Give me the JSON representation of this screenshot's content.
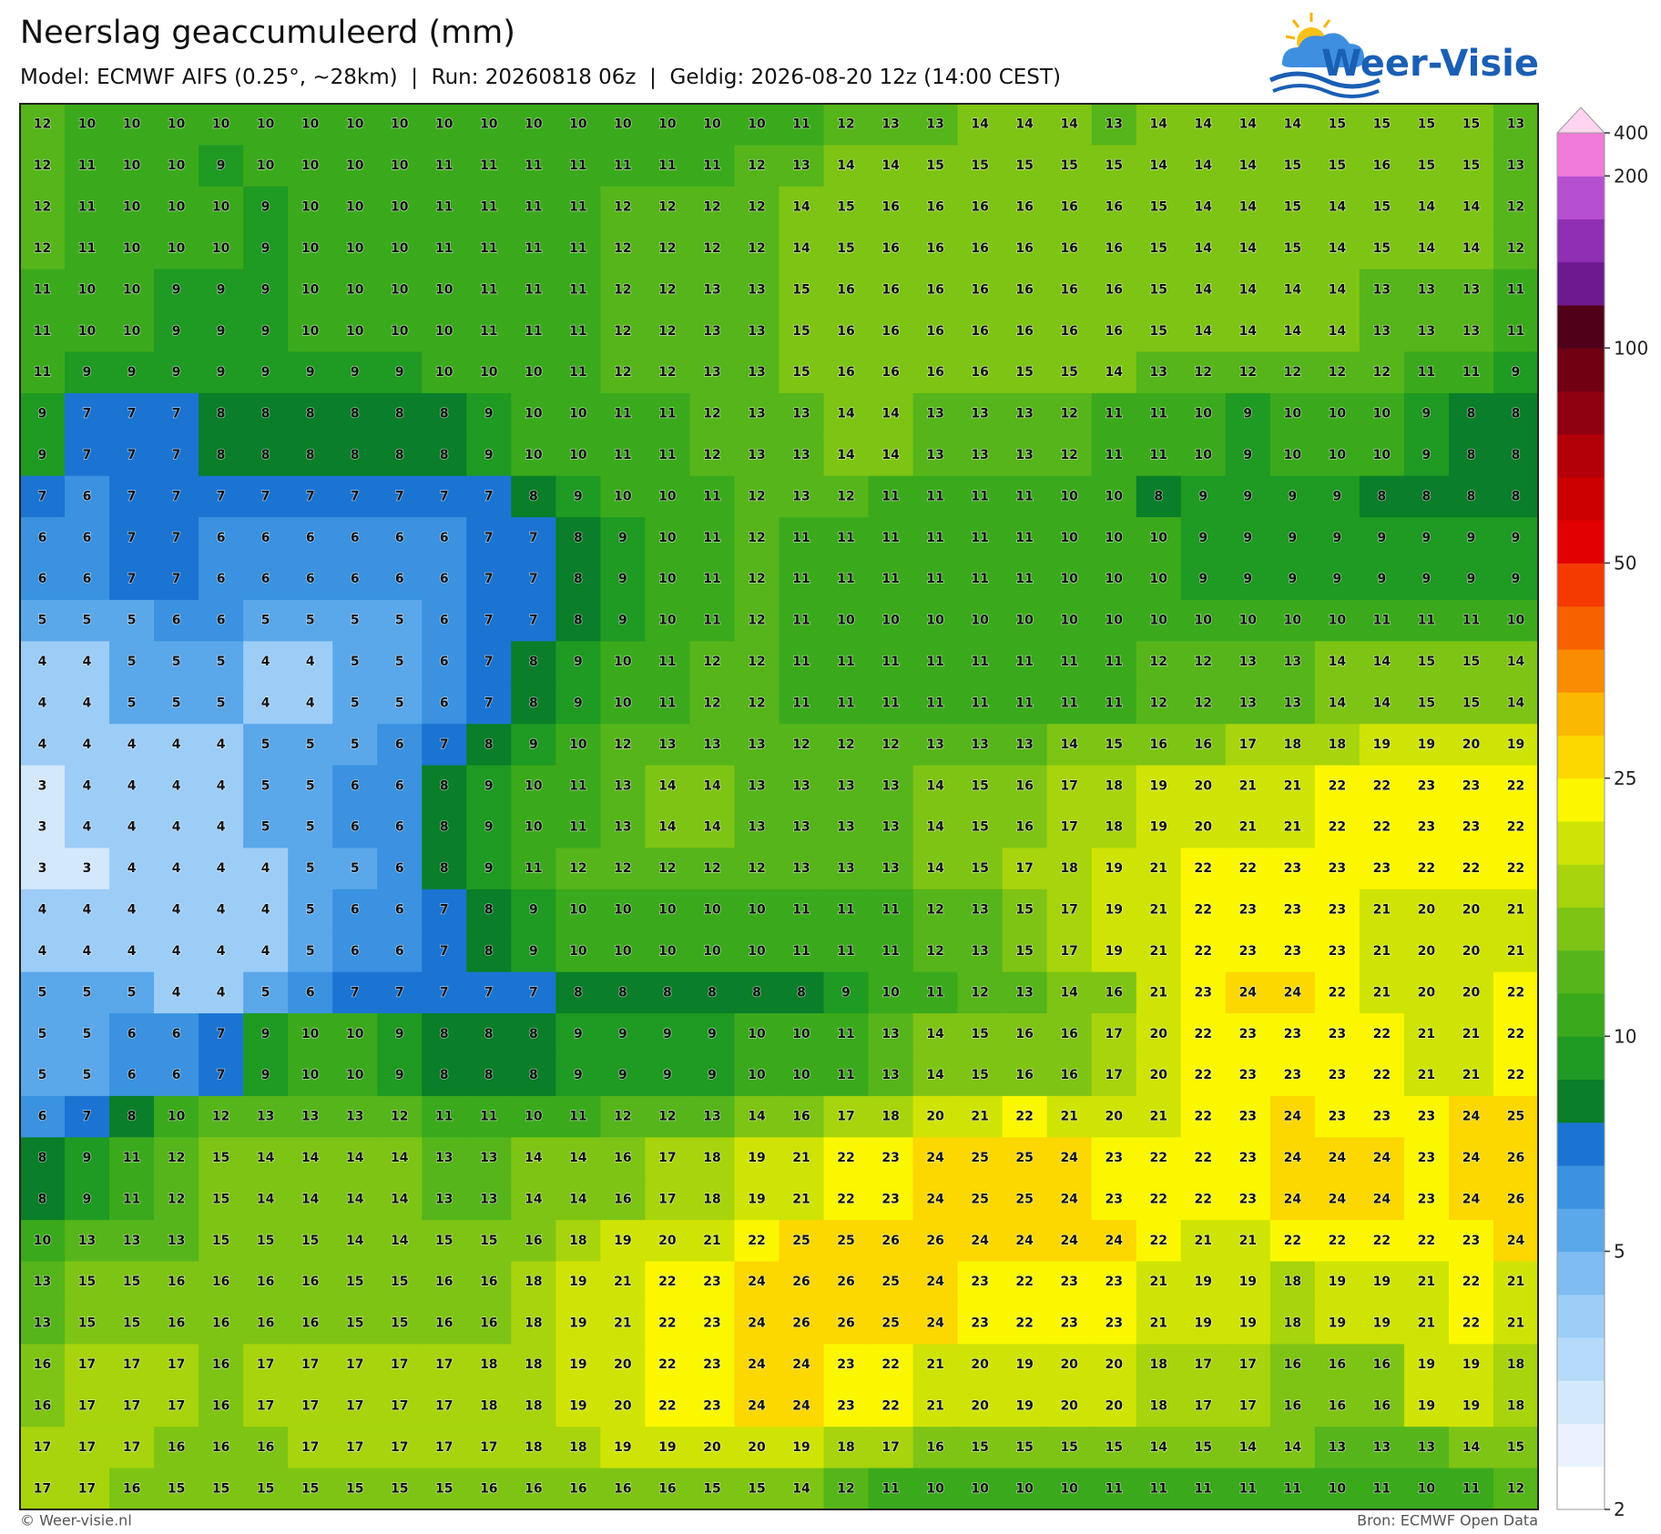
{
  "header": {
    "title": "Neerslag geaccumuleerd (mm)",
    "subtitle": "Model: ECMWF AIFS (0.25°, ~28km)  |  Run: 20260818 06z  |  Geldig: 2026-08-20 12z (14:00 CEST)"
  },
  "logo": {
    "text": "Weer-Visie"
  },
  "map": {
    "values": [
      [
        12,
        10,
        10,
        10,
        10,
        10,
        10,
        10,
        10,
        10,
        10,
        10,
        10,
        10,
        10,
        10,
        10,
        11,
        12,
        13,
        13,
        14,
        14,
        14,
        13,
        14,
        14,
        14,
        14,
        15,
        15,
        15,
        15,
        13
      ],
      [
        12,
        11,
        10,
        10,
        9,
        10,
        10,
        10,
        10,
        11,
        11,
        11,
        11,
        11,
        11,
        11,
        12,
        13,
        14,
        14,
        15,
        15,
        15,
        15,
        15,
        14,
        14,
        14,
        15,
        15,
        16,
        15,
        15,
        13
      ],
      [
        12,
        11,
        10,
        10,
        10,
        9,
        10,
        10,
        10,
        11,
        11,
        11,
        11,
        12,
        12,
        12,
        12,
        14,
        15,
        16,
        16,
        16,
        16,
        16,
        16,
        15,
        14,
        14,
        15,
        14,
        15,
        14,
        14,
        12
      ],
      [
        12,
        11,
        10,
        10,
        10,
        9,
        10,
        10,
        10,
        11,
        11,
        11,
        11,
        12,
        12,
        12,
        12,
        14,
        15,
        16,
        16,
        16,
        16,
        16,
        16,
        15,
        14,
        14,
        15,
        14,
        15,
        14,
        14,
        12
      ],
      [
        11,
        10,
        10,
        9,
        9,
        9,
        10,
        10,
        10,
        10,
        11,
        11,
        11,
        12,
        12,
        13,
        13,
        15,
        16,
        16,
        16,
        16,
        16,
        16,
        16,
        15,
        14,
        14,
        14,
        14,
        13,
        13,
        13,
        11
      ],
      [
        11,
        10,
        10,
        9,
        9,
        9,
        10,
        10,
        10,
        10,
        11,
        11,
        11,
        12,
        12,
        13,
        13,
        15,
        16,
        16,
        16,
        16,
        16,
        16,
        16,
        15,
        14,
        14,
        14,
        14,
        13,
        13,
        13,
        11
      ],
      [
        11,
        9,
        9,
        9,
        9,
        9,
        9,
        9,
        9,
        10,
        10,
        10,
        11,
        12,
        12,
        13,
        13,
        15,
        16,
        16,
        16,
        16,
        15,
        15,
        14,
        13,
        12,
        12,
        12,
        12,
        12,
        11,
        11,
        9
      ],
      [
        9,
        7,
        7,
        7,
        8,
        8,
        8,
        8,
        8,
        8,
        9,
        10,
        10,
        11,
        11,
        12,
        13,
        13,
        14,
        14,
        13,
        13,
        13,
        12,
        11,
        11,
        10,
        9,
        10,
        10,
        10,
        9,
        8,
        8
      ],
      [
        9,
        7,
        7,
        7,
        8,
        8,
        8,
        8,
        8,
        8,
        9,
        10,
        10,
        11,
        11,
        12,
        13,
        13,
        14,
        14,
        13,
        13,
        13,
        12,
        11,
        11,
        10,
        9,
        10,
        10,
        10,
        9,
        8,
        8
      ],
      [
        7,
        6,
        7,
        7,
        7,
        7,
        7,
        7,
        7,
        7,
        7,
        8,
        9,
        10,
        10,
        11,
        12,
        13,
        12,
        11,
        11,
        11,
        11,
        10,
        10,
        8,
        9,
        9,
        9,
        9,
        8,
        8,
        8,
        8
      ],
      [
        6,
        6,
        7,
        7,
        6,
        6,
        6,
        6,
        6,
        6,
        7,
        7,
        8,
        9,
        10,
        11,
        12,
        11,
        11,
        11,
        11,
        11,
        11,
        10,
        10,
        10,
        9,
        9,
        9,
        9,
        9,
        9,
        9,
        9
      ],
      [
        6,
        6,
        7,
        7,
        6,
        6,
        6,
        6,
        6,
        6,
        7,
        7,
        8,
        9,
        10,
        11,
        12,
        11,
        11,
        11,
        11,
        11,
        11,
        10,
        10,
        10,
        9,
        9,
        9,
        9,
        9,
        9,
        9,
        9
      ],
      [
        5,
        5,
        5,
        6,
        6,
        5,
        5,
        5,
        5,
        6,
        7,
        7,
        8,
        9,
        10,
        11,
        12,
        11,
        10,
        10,
        10,
        10,
        10,
        10,
        10,
        10,
        10,
        10,
        10,
        10,
        11,
        11,
        11,
        10
      ],
      [
        4,
        4,
        5,
        5,
        5,
        4,
        4,
        5,
        5,
        6,
        7,
        8,
        9,
        10,
        11,
        12,
        12,
        11,
        11,
        11,
        11,
        11,
        11,
        11,
        11,
        12,
        12,
        13,
        13,
        14,
        14,
        15,
        15,
        14
      ],
      [
        4,
        4,
        5,
        5,
        5,
        4,
        4,
        5,
        5,
        6,
        7,
        8,
        9,
        10,
        11,
        12,
        12,
        11,
        11,
        11,
        11,
        11,
        11,
        11,
        11,
        12,
        12,
        13,
        13,
        14,
        14,
        15,
        15,
        14
      ],
      [
        4,
        4,
        4,
        4,
        4,
        5,
        5,
        5,
        6,
        7,
        8,
        9,
        10,
        12,
        13,
        13,
        13,
        12,
        12,
        12,
        13,
        13,
        13,
        14,
        15,
        16,
        16,
        17,
        18,
        18,
        19,
        19,
        20,
        19
      ],
      [
        3,
        4,
        4,
        4,
        4,
        5,
        5,
        6,
        6,
        8,
        9,
        10,
        11,
        13,
        14,
        14,
        13,
        13,
        13,
        13,
        14,
        15,
        16,
        17,
        18,
        19,
        20,
        21,
        21,
        22,
        22,
        23,
        23,
        22
      ],
      [
        3,
        4,
        4,
        4,
        4,
        5,
        5,
        6,
        6,
        8,
        9,
        10,
        11,
        13,
        14,
        14,
        13,
        13,
        13,
        13,
        14,
        15,
        16,
        17,
        18,
        19,
        20,
        21,
        21,
        22,
        22,
        23,
        23,
        22
      ],
      [
        3,
        3,
        4,
        4,
        4,
        4,
        5,
        5,
        6,
        8,
        9,
        11,
        12,
        12,
        12,
        12,
        12,
        13,
        13,
        13,
        14,
        15,
        17,
        18,
        19,
        21,
        22,
        22,
        23,
        23,
        23,
        22,
        22,
        22
      ],
      [
        4,
        4,
        4,
        4,
        4,
        4,
        5,
        6,
        6,
        7,
        8,
        9,
        10,
        10,
        10,
        10,
        10,
        11,
        11,
        11,
        12,
        13,
        15,
        17,
        19,
        21,
        22,
        23,
        23,
        23,
        21,
        20,
        20,
        21
      ],
      [
        4,
        4,
        4,
        4,
        4,
        4,
        5,
        6,
        6,
        7,
        8,
        9,
        10,
        10,
        10,
        10,
        10,
        11,
        11,
        11,
        12,
        13,
        15,
        17,
        19,
        21,
        22,
        23,
        23,
        23,
        21,
        20,
        20,
        21
      ],
      [
        5,
        5,
        5,
        4,
        4,
        5,
        6,
        7,
        7,
        7,
        7,
        7,
        8,
        8,
        8,
        8,
        8,
        8,
        9,
        10,
        11,
        12,
        13,
        14,
        16,
        21,
        23,
        24,
        24,
        22,
        21,
        20,
        20,
        22
      ],
      [
        5,
        5,
        6,
        6,
        7,
        9,
        10,
        10,
        9,
        8,
        8,
        8,
        9,
        9,
        9,
        9,
        10,
        10,
        11,
        13,
        14,
        15,
        16,
        16,
        17,
        20,
        22,
        23,
        23,
        23,
        22,
        21,
        21,
        22
      ],
      [
        5,
        5,
        6,
        6,
        7,
        9,
        10,
        10,
        9,
        8,
        8,
        8,
        9,
        9,
        9,
        9,
        10,
        10,
        11,
        13,
        14,
        15,
        16,
        16,
        17,
        20,
        22,
        23,
        23,
        23,
        22,
        21,
        21,
        22
      ],
      [
        6,
        7,
        8,
        10,
        12,
        13,
        13,
        13,
        12,
        11,
        11,
        10,
        11,
        12,
        12,
        13,
        14,
        16,
        17,
        18,
        20,
        21,
        22,
        21,
        20,
        21,
        22,
        23,
        24,
        23,
        23,
        23,
        24,
        25
      ],
      [
        8,
        9,
        11,
        12,
        15,
        14,
        14,
        14,
        14,
        13,
        13,
        14,
        14,
        16,
        17,
        18,
        19,
        21,
        22,
        23,
        24,
        25,
        25,
        24,
        23,
        22,
        22,
        23,
        24,
        24,
        24,
        23,
        24,
        26
      ],
      [
        8,
        9,
        11,
        12,
        15,
        14,
        14,
        14,
        14,
        13,
        13,
        14,
        14,
        16,
        17,
        18,
        19,
        21,
        22,
        23,
        24,
        25,
        25,
        24,
        23,
        22,
        22,
        23,
        24,
        24,
        24,
        23,
        24,
        26
      ],
      [
        10,
        13,
        13,
        13,
        15,
        15,
        15,
        14,
        14,
        15,
        15,
        16,
        18,
        19,
        20,
        21,
        22,
        25,
        25,
        26,
        26,
        24,
        24,
        24,
        24,
        22,
        21,
        21,
        22,
        22,
        22,
        22,
        23,
        24
      ],
      [
        13,
        15,
        15,
        16,
        16,
        16,
        16,
        15,
        15,
        16,
        16,
        18,
        19,
        21,
        22,
        23,
        24,
        26,
        26,
        25,
        24,
        23,
        22,
        23,
        23,
        21,
        19,
        19,
        18,
        19,
        19,
        21,
        22,
        21
      ],
      [
        13,
        15,
        15,
        16,
        16,
        16,
        16,
        15,
        15,
        16,
        16,
        18,
        19,
        21,
        22,
        23,
        24,
        26,
        26,
        25,
        24,
        23,
        22,
        23,
        23,
        21,
        19,
        19,
        18,
        19,
        19,
        21,
        22,
        21
      ],
      [
        16,
        17,
        17,
        17,
        16,
        17,
        17,
        17,
        17,
        17,
        18,
        18,
        19,
        20,
        22,
        23,
        24,
        24,
        23,
        22,
        21,
        20,
        19,
        20,
        20,
        18,
        17,
        17,
        16,
        16,
        16,
        19,
        19,
        18
      ],
      [
        16,
        17,
        17,
        17,
        16,
        17,
        17,
        17,
        17,
        17,
        18,
        18,
        19,
        20,
        22,
        23,
        24,
        24,
        23,
        22,
        21,
        20,
        19,
        20,
        20,
        18,
        17,
        17,
        16,
        16,
        16,
        19,
        19,
        18
      ],
      [
        17,
        17,
        17,
        16,
        16,
        16,
        17,
        17,
        17,
        17,
        17,
        18,
        18,
        19,
        19,
        20,
        20,
        19,
        18,
        17,
        16,
        15,
        15,
        15,
        15,
        14,
        15,
        14,
        14,
        13,
        13,
        13,
        14,
        15
      ],
      [
        17,
        17,
        16,
        15,
        15,
        15,
        15,
        15,
        15,
        15,
        16,
        16,
        16,
        16,
        16,
        15,
        15,
        14,
        12,
        11,
        10,
        10,
        10,
        10,
        11,
        11,
        11,
        11,
        11,
        10,
        11,
        10,
        11,
        12
      ]
    ]
  },
  "colorbar": {
    "colors": [
      "#ffffff",
      "#eaf3fd",
      "#d3e8fb",
      "#b6dafa",
      "#9ccdf7",
      "#7ebcf1",
      "#5aa7ea",
      "#3a92e0",
      "#1b74d2",
      "#0a7e28",
      "#1f9a22",
      "#3aaa1c",
      "#55b51a",
      "#7ec414",
      "#a7d40c",
      "#cfe405",
      "#fbf700",
      "#fcd700",
      "#fbb800",
      "#f98c00",
      "#f76100",
      "#f43a00",
      "#e30000",
      "#cc0000",
      "#b30008",
      "#8f0010",
      "#700012",
      "#500018",
      "#6b1a8f",
      "#8f2fb3",
      "#b64fd0",
      "#f07ad8"
    ],
    "top_color": "#ffd4f0",
    "ticks": [
      400,
      200,
      100,
      50,
      25,
      10,
      5,
      2
    ]
  },
  "footer": {
    "left": "© Weer-visie.nl",
    "right": "Bron: ECMWF Open Data"
  }
}
